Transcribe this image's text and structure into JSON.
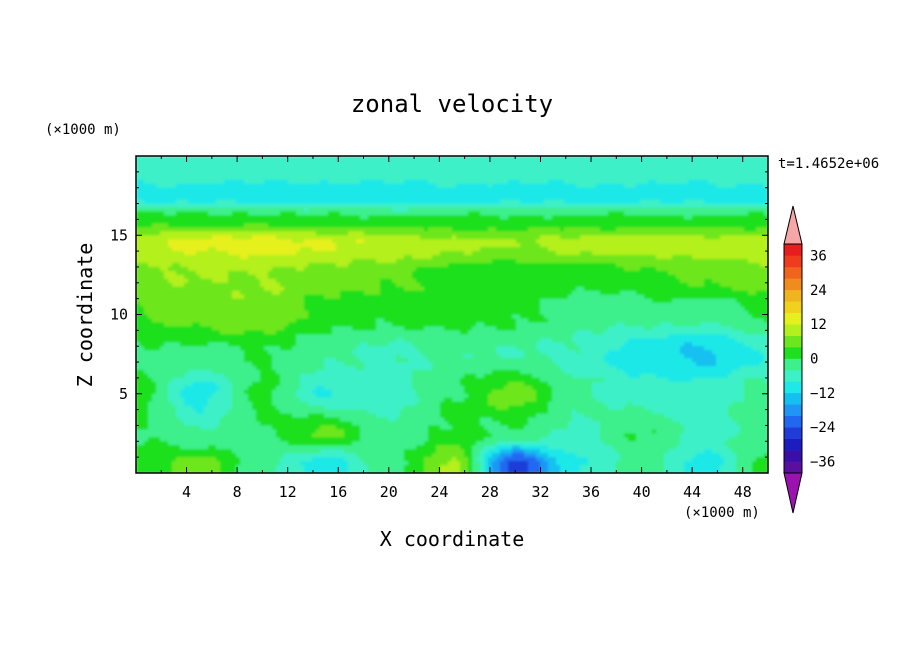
{
  "chart_data": {
    "type": "heatmap",
    "title": "zonal velocity",
    "xlabel": "X coordinate",
    "ylabel": "Z coordinate",
    "x_unit": "(×1000 m)",
    "y_unit": "(×1000 m)",
    "time_stamp": "t=1.4652e+06",
    "xlim": [
      0,
      50
    ],
    "ylim": [
      0,
      20
    ],
    "x_ticks": [
      "4",
      "8",
      "12",
      "16",
      "20",
      "24",
      "28",
      "32",
      "36",
      "40",
      "44",
      "48"
    ],
    "y_ticks": [
      "5",
      "10",
      "15"
    ],
    "colorbar": {
      "levels": [
        -40,
        -36,
        -32,
        -28,
        -24,
        -20,
        -16,
        -12,
        -8,
        -4,
        0,
        4,
        8,
        12,
        16,
        20,
        24,
        28,
        32,
        36,
        40
      ],
      "tick_labels": [
        "36",
        "24",
        "12",
        "0",
        "−12",
        "−24",
        "−36"
      ],
      "colors": [
        "#5a0f9f",
        "#3a0fa8",
        "#1c1cbf",
        "#1f3cd8",
        "#2168f0",
        "#1f96f5",
        "#14c0f0",
        "#1ee8e8",
        "#3cf0c8",
        "#3cf08c",
        "#1fe01f",
        "#6ee61e",
        "#b4f01e",
        "#e6f01e",
        "#f0d21e",
        "#f0b41e",
        "#f08c1e",
        "#f0641e",
        "#f03c1e",
        "#e81e1e"
      ],
      "extend_low_color": "#9b12b0",
      "extend_high_color": "#f5a7a7"
    },
    "grid": false,
    "field_description_values": {
      "x_km": [
        0,
        5,
        10,
        15,
        20,
        25,
        30,
        35,
        40,
        45,
        50
      ],
      "z_km_rows": [
        {
          "z": 19,
          "u": [
            -6,
            -6,
            -6,
            -6,
            -6,
            -6,
            -6,
            -6,
            -6,
            -6,
            -6
          ]
        },
        {
          "z": 17.5,
          "u": [
            -10,
            -10,
            -11,
            -11,
            -11,
            -10,
            -10,
            -10,
            -10,
            -10,
            -10
          ]
        },
        {
          "z": 16,
          "u": [
            2,
            2,
            2,
            1,
            1,
            1,
            1,
            1,
            1,
            1,
            1
          ]
        },
        {
          "z": 14.5,
          "u": [
            11,
            13,
            14,
            12,
            11,
            9,
            8,
            10,
            11,
            10,
            11
          ]
        },
        {
          "z": 12.5,
          "u": [
            7,
            8,
            8,
            7,
            5,
            3,
            1,
            1,
            3,
            5,
            7
          ]
        },
        {
          "z": 10,
          "u": [
            4,
            6,
            7,
            2,
            1,
            2,
            1,
            -2,
            -2,
            -3,
            1
          ]
        },
        {
          "z": 7.5,
          "u": [
            -1,
            -1,
            0,
            -3,
            -5,
            -3,
            -4,
            -5,
            -11,
            -13,
            -8
          ]
        },
        {
          "z": 5,
          "u": [
            2,
            -10,
            1,
            -8,
            -6,
            0,
            6,
            -3,
            -6,
            -6,
            -2
          ]
        },
        {
          "z": 2.5,
          "u": [
            0,
            -4,
            0,
            5,
            -3,
            1,
            -1,
            -5,
            0,
            -5,
            -2
          ]
        },
        {
          "z": 0.5,
          "u": [
            1,
            6,
            -3,
            -10,
            -2,
            9,
            -26,
            -8,
            -2,
            -10,
            2
          ]
        }
      ]
    }
  }
}
